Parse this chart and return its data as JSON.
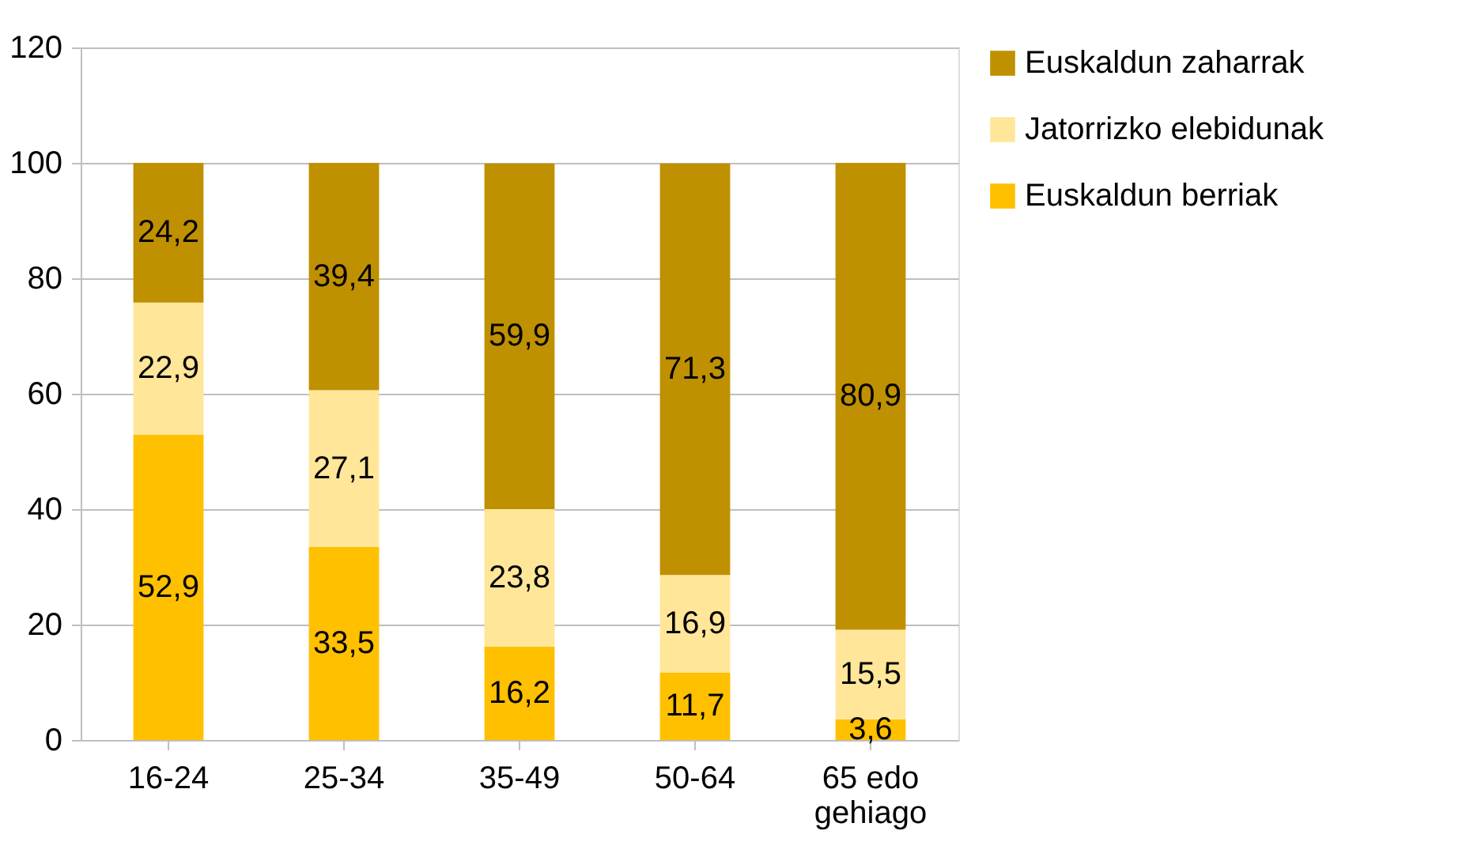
{
  "chart_data": {
    "type": "bar",
    "stacked": true,
    "categories": [
      "16-24",
      "25-34",
      "35-49",
      "50-64",
      "65 edo gehiago"
    ],
    "series": [
      {
        "name": "Euskaldun berriak",
        "color": "#ffc000",
        "values": [
          52.9,
          33.5,
          16.2,
          11.7,
          3.6
        ],
        "value_labels": [
          "52,9",
          "33,5",
          "16,2",
          "11,7",
          "3,6"
        ]
      },
      {
        "name": "Jatorrizko elebidunak",
        "color": "#ffe699",
        "values": [
          22.9,
          27.1,
          23.8,
          16.9,
          15.5
        ],
        "value_labels": [
          "22,9",
          "27,1",
          "23,8",
          "16,9",
          "15,5"
        ]
      },
      {
        "name": "Euskaldun zaharrak",
        "color": "#bf9000",
        "values": [
          24.2,
          39.4,
          59.9,
          71.3,
          80.9
        ],
        "value_labels": [
          "24,2",
          "39,4",
          "59,9",
          "71,3",
          "80,9"
        ]
      }
    ],
    "ylim": [
      0,
      120
    ],
    "yticks": [
      0,
      20,
      40,
      60,
      80,
      100,
      120
    ],
    "grid": "y",
    "legend": "right"
  }
}
